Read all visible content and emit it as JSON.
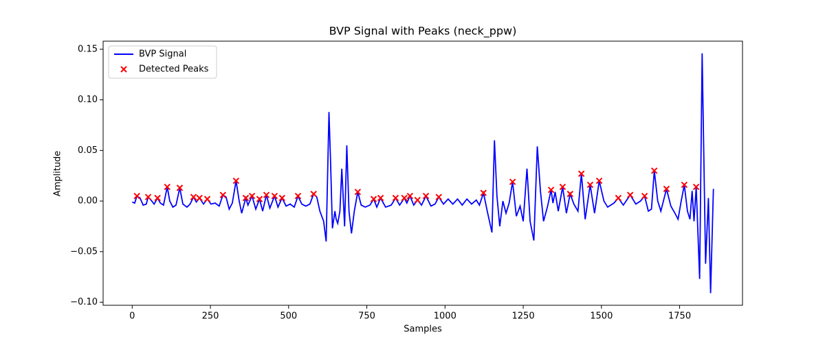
{
  "chart_data": {
    "type": "line",
    "title": "BVP Signal with Peaks (neck_ppw)",
    "x_label": "Samples",
    "y_label": "Amplitude",
    "xlim": [
      -93,
      1951
    ],
    "ylim": [
      -0.103,
      0.158
    ],
    "xticks": [
      0,
      250,
      500,
      750,
      1000,
      1250,
      1500,
      1750
    ],
    "yticks": [
      {
        "value": -0.1,
        "label": "−0.10"
      },
      {
        "value": -0.05,
        "label": "−0.05"
      },
      {
        "value": 0,
        "label": "0.00"
      },
      {
        "value": 0.05,
        "label": "0.05"
      },
      {
        "value": 0.1,
        "label": "0.10"
      },
      {
        "value": 0.15,
        "label": "0.15"
      }
    ],
    "grid": false,
    "legend": "upper left",
    "series": [
      {
        "name": "BVP Signal",
        "type": "line",
        "color": "#0000ff",
        "x": [
          0,
          8,
          15,
          25,
          35,
          45,
          51,
          60,
          70,
          81,
          90,
          100,
          112,
          120,
          130,
          140,
          152,
          162,
          175,
          185,
          196,
          205,
          215,
          228,
          240,
          252,
          265,
          278,
          290,
          300,
          310,
          320,
          332,
          342,
          350,
          363,
          370,
          383,
          395,
          407,
          417,
          429,
          440,
          455,
          466,
          479,
          492,
          505,
          518,
          530,
          542,
          555,
          568,
          580,
          590,
          600,
          612,
          620,
          629,
          634,
          640,
          648,
          652,
          657,
          664,
          670,
          679,
          686,
          693,
          701,
          710,
          721,
          732,
          745,
          760,
          772,
          782,
          794,
          810,
          828,
          842,
          855,
          870,
          878,
          888,
          900,
          912,
          925,
          939,
          955,
          968,
          980,
          995,
          1010,
          1025,
          1040,
          1055,
          1070,
          1085,
          1100,
          1110,
          1123,
          1135,
          1150,
          1158,
          1166,
          1175,
          1185,
          1195,
          1205,
          1216,
          1228,
          1240,
          1250,
          1262,
          1272,
          1284,
          1295,
          1305,
          1315,
          1328,
          1339,
          1345,
          1352,
          1362,
          1376,
          1388,
          1400,
          1412,
          1425,
          1436,
          1448,
          1464,
          1478,
          1493,
          1508,
          1520,
          1540,
          1554,
          1570,
          1592,
          1610,
          1625,
          1638,
          1650,
          1660,
          1669,
          1680,
          1690,
          1708,
          1722,
          1735,
          1745,
          1755,
          1765,
          1775,
          1783,
          1790,
          1796,
          1803,
          1814,
          1822,
          1833,
          1842,
          1849,
          1858
        ],
        "values": [
          -0.001,
          -0.002,
          0.005,
          0.003,
          -0.004,
          -0.003,
          0.004,
          0.001,
          -0.003,
          0.003,
          -0.002,
          -0.004,
          0.014,
          0.0,
          -0.006,
          -0.004,
          0.013,
          -0.003,
          -0.006,
          -0.003,
          0.004,
          -0.001,
          0.003,
          -0.003,
          0.002,
          -0.003,
          -0.002,
          -0.005,
          0.006,
          0.004,
          -0.008,
          -0.002,
          0.02,
          0.0,
          -0.012,
          0.003,
          -0.004,
          0.005,
          -0.008,
          0.002,
          -0.01,
          0.006,
          -0.007,
          0.005,
          -0.006,
          0.003,
          -0.005,
          -0.003,
          -0.006,
          0.005,
          -0.003,
          -0.005,
          -0.003,
          0.007,
          0.004,
          -0.01,
          -0.02,
          -0.04,
          0.088,
          0.04,
          -0.027,
          -0.01,
          -0.018,
          -0.022,
          -0.01,
          0.032,
          -0.025,
          0.055,
          -0.01,
          -0.032,
          -0.01,
          0.009,
          -0.004,
          -0.006,
          -0.004,
          0.002,
          -0.006,
          0.003,
          -0.006,
          -0.004,
          0.003,
          -0.004,
          0.003,
          -0.002,
          0.005,
          -0.004,
          0.001,
          -0.004,
          0.005,
          -0.005,
          -0.003,
          0.004,
          -0.003,
          0.002,
          -0.003,
          0.002,
          -0.004,
          0.002,
          -0.003,
          0.001,
          -0.004,
          0.008,
          -0.01,
          -0.031,
          0.06,
          0.005,
          -0.025,
          0.0,
          -0.012,
          -0.002,
          0.019,
          -0.015,
          -0.005,
          -0.02,
          0.032,
          -0.02,
          -0.039,
          0.054,
          0.01,
          -0.02,
          -0.005,
          0.011,
          -0.002,
          0.009,
          -0.01,
          0.014,
          -0.012,
          0.007,
          -0.003,
          -0.01,
          0.027,
          -0.018,
          0.016,
          -0.012,
          0.02,
          0.0,
          -0.006,
          -0.002,
          0.003,
          -0.004,
          0.006,
          -0.003,
          0.0,
          0.005,
          -0.01,
          -0.008,
          0.03,
          0.0,
          -0.01,
          0.012,
          -0.005,
          -0.012,
          -0.018,
          0.0,
          0.016,
          -0.01,
          -0.018,
          0.01,
          -0.02,
          0.014,
          -0.077,
          0.146,
          -0.062,
          0.003,
          -0.091,
          0.012
        ]
      },
      {
        "name": "Detected Peaks",
        "type": "scatter",
        "color": "#ff0000",
        "x": [
          15,
          51,
          81,
          112,
          152,
          196,
          215,
          240,
          290,
          332,
          363,
          383,
          407,
          429,
          455,
          479,
          530,
          580,
          721,
          772,
          794,
          842,
          870,
          888,
          912,
          939,
          980,
          1123,
          1216,
          1339,
          1376,
          1400,
          1436,
          1464,
          1493,
          1554,
          1592,
          1638,
          1669,
          1708,
          1765,
          1803
        ],
        "values": [
          0.005,
          0.004,
          0.003,
          0.014,
          0.013,
          0.004,
          0.003,
          0.002,
          0.006,
          0.02,
          0.003,
          0.005,
          0.002,
          0.006,
          0.005,
          0.003,
          0.005,
          0.007,
          0.009,
          0.002,
          0.003,
          0.003,
          0.003,
          0.005,
          0.001,
          0.005,
          0.004,
          0.008,
          0.019,
          0.011,
          0.014,
          0.007,
          0.027,
          0.016,
          0.02,
          0.003,
          0.006,
          0.005,
          0.03,
          0.012,
          0.016,
          0.014
        ]
      }
    ]
  }
}
